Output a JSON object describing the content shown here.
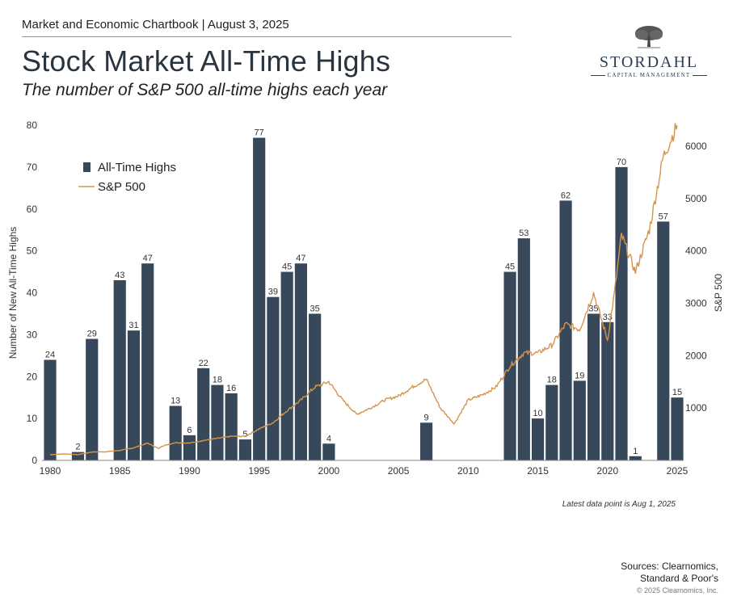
{
  "header": {
    "chartbook": "Market and Economic Chartbook | August 3, 2025",
    "title": "Stock Market All-Time Highs",
    "subtitle": "The number of S&P 500 all-time highs each year"
  },
  "logo": {
    "name": "STORDAHL",
    "sub": "CAPITAL MANAGEMENT",
    "icon": "tree-icon"
  },
  "colors": {
    "bar": "#37485a",
    "line": "#d4954d",
    "axis": "#333333"
  },
  "chart_data": {
    "type": "bar",
    "title": "",
    "xlabel": "",
    "ylabel": "Number of New All-Time Highs",
    "y2label": "S&P 500",
    "ylim": [
      0,
      80
    ],
    "y2lim": [
      0,
      6400
    ],
    "xlim": [
      1980,
      2025
    ],
    "yticks": [
      0,
      10,
      20,
      30,
      40,
      50,
      60,
      70,
      80
    ],
    "y2ticks": [
      1000,
      2000,
      3000,
      4000,
      5000,
      6000
    ],
    "xticks": [
      1980,
      1985,
      1990,
      1995,
      2000,
      2005,
      2010,
      2015,
      2020,
      2025
    ],
    "legend": [
      {
        "label": "All-Time Highs",
        "kind": "bar"
      },
      {
        "label": "S&P 500",
        "kind": "line"
      }
    ],
    "series": [
      {
        "name": "All-Time Highs",
        "axis": "left",
        "points": [
          [
            1980,
            24
          ],
          [
            1982,
            2
          ],
          [
            1983,
            29
          ],
          [
            1985,
            43
          ],
          [
            1986,
            31
          ],
          [
            1987,
            47
          ],
          [
            1989,
            13
          ],
          [
            1990,
            6
          ],
          [
            1991,
            22
          ],
          [
            1992,
            18
          ],
          [
            1993,
            16
          ],
          [
            1994,
            5
          ],
          [
            1995,
            77
          ],
          [
            1996,
            39
          ],
          [
            1997,
            45
          ],
          [
            1998,
            47
          ],
          [
            1999,
            35
          ],
          [
            2000,
            4
          ],
          [
            2007,
            9
          ],
          [
            2013,
            45
          ],
          [
            2014,
            53
          ],
          [
            2015,
            10
          ],
          [
            2016,
            18
          ],
          [
            2017,
            62
          ],
          [
            2018,
            19
          ],
          [
            2019,
            35
          ],
          [
            2020,
            33
          ],
          [
            2021,
            70
          ],
          [
            2022,
            1
          ],
          [
            2024,
            57
          ],
          [
            2025,
            15
          ]
        ]
      },
      {
        "name": "S&P 500",
        "axis": "right",
        "points": [
          [
            1980,
            108
          ],
          [
            1981,
            125
          ],
          [
            1982,
            110
          ],
          [
            1983,
            160
          ],
          [
            1984,
            165
          ],
          [
            1985,
            190
          ],
          [
            1986,
            240
          ],
          [
            1987,
            330
          ],
          [
            1987.8,
            225
          ],
          [
            1988,
            270
          ],
          [
            1989,
            340
          ],
          [
            1990,
            330
          ],
          [
            1991,
            380
          ],
          [
            1992,
            420
          ],
          [
            1993,
            460
          ],
          [
            1994,
            460
          ],
          [
            1995,
            600
          ],
          [
            1996,
            720
          ],
          [
            1997,
            950
          ],
          [
            1998,
            1150
          ],
          [
            1999,
            1400
          ],
          [
            2000,
            1500
          ],
          [
            2001,
            1150
          ],
          [
            2002,
            880
          ],
          [
            2003,
            1000
          ],
          [
            2004,
            1150
          ],
          [
            2005,
            1230
          ],
          [
            2006,
            1400
          ],
          [
            2007,
            1550
          ],
          [
            2008,
            1000
          ],
          [
            2009,
            700
          ],
          [
            2010,
            1150
          ],
          [
            2011,
            1250
          ],
          [
            2012,
            1400
          ],
          [
            2013,
            1800
          ],
          [
            2014,
            2050
          ],
          [
            2015,
            2050
          ],
          [
            2016,
            2200
          ],
          [
            2017,
            2600
          ],
          [
            2018,
            2500
          ],
          [
            2019,
            3200
          ],
          [
            2020,
            2300
          ],
          [
            2020.5,
            3200
          ],
          [
            2021,
            4300
          ],
          [
            2022,
            3600
          ],
          [
            2023,
            4400
          ],
          [
            2024,
            5800
          ],
          [
            2025,
            6400
          ]
        ]
      }
    ],
    "annotation": "Latest data point is Aug 1, 2025"
  },
  "footer": {
    "sources_line1": "Sources: Clearnomics,",
    "sources_line2": "Standard & Poor's",
    "copyright": "© 2025 Clearnomics, Inc."
  }
}
